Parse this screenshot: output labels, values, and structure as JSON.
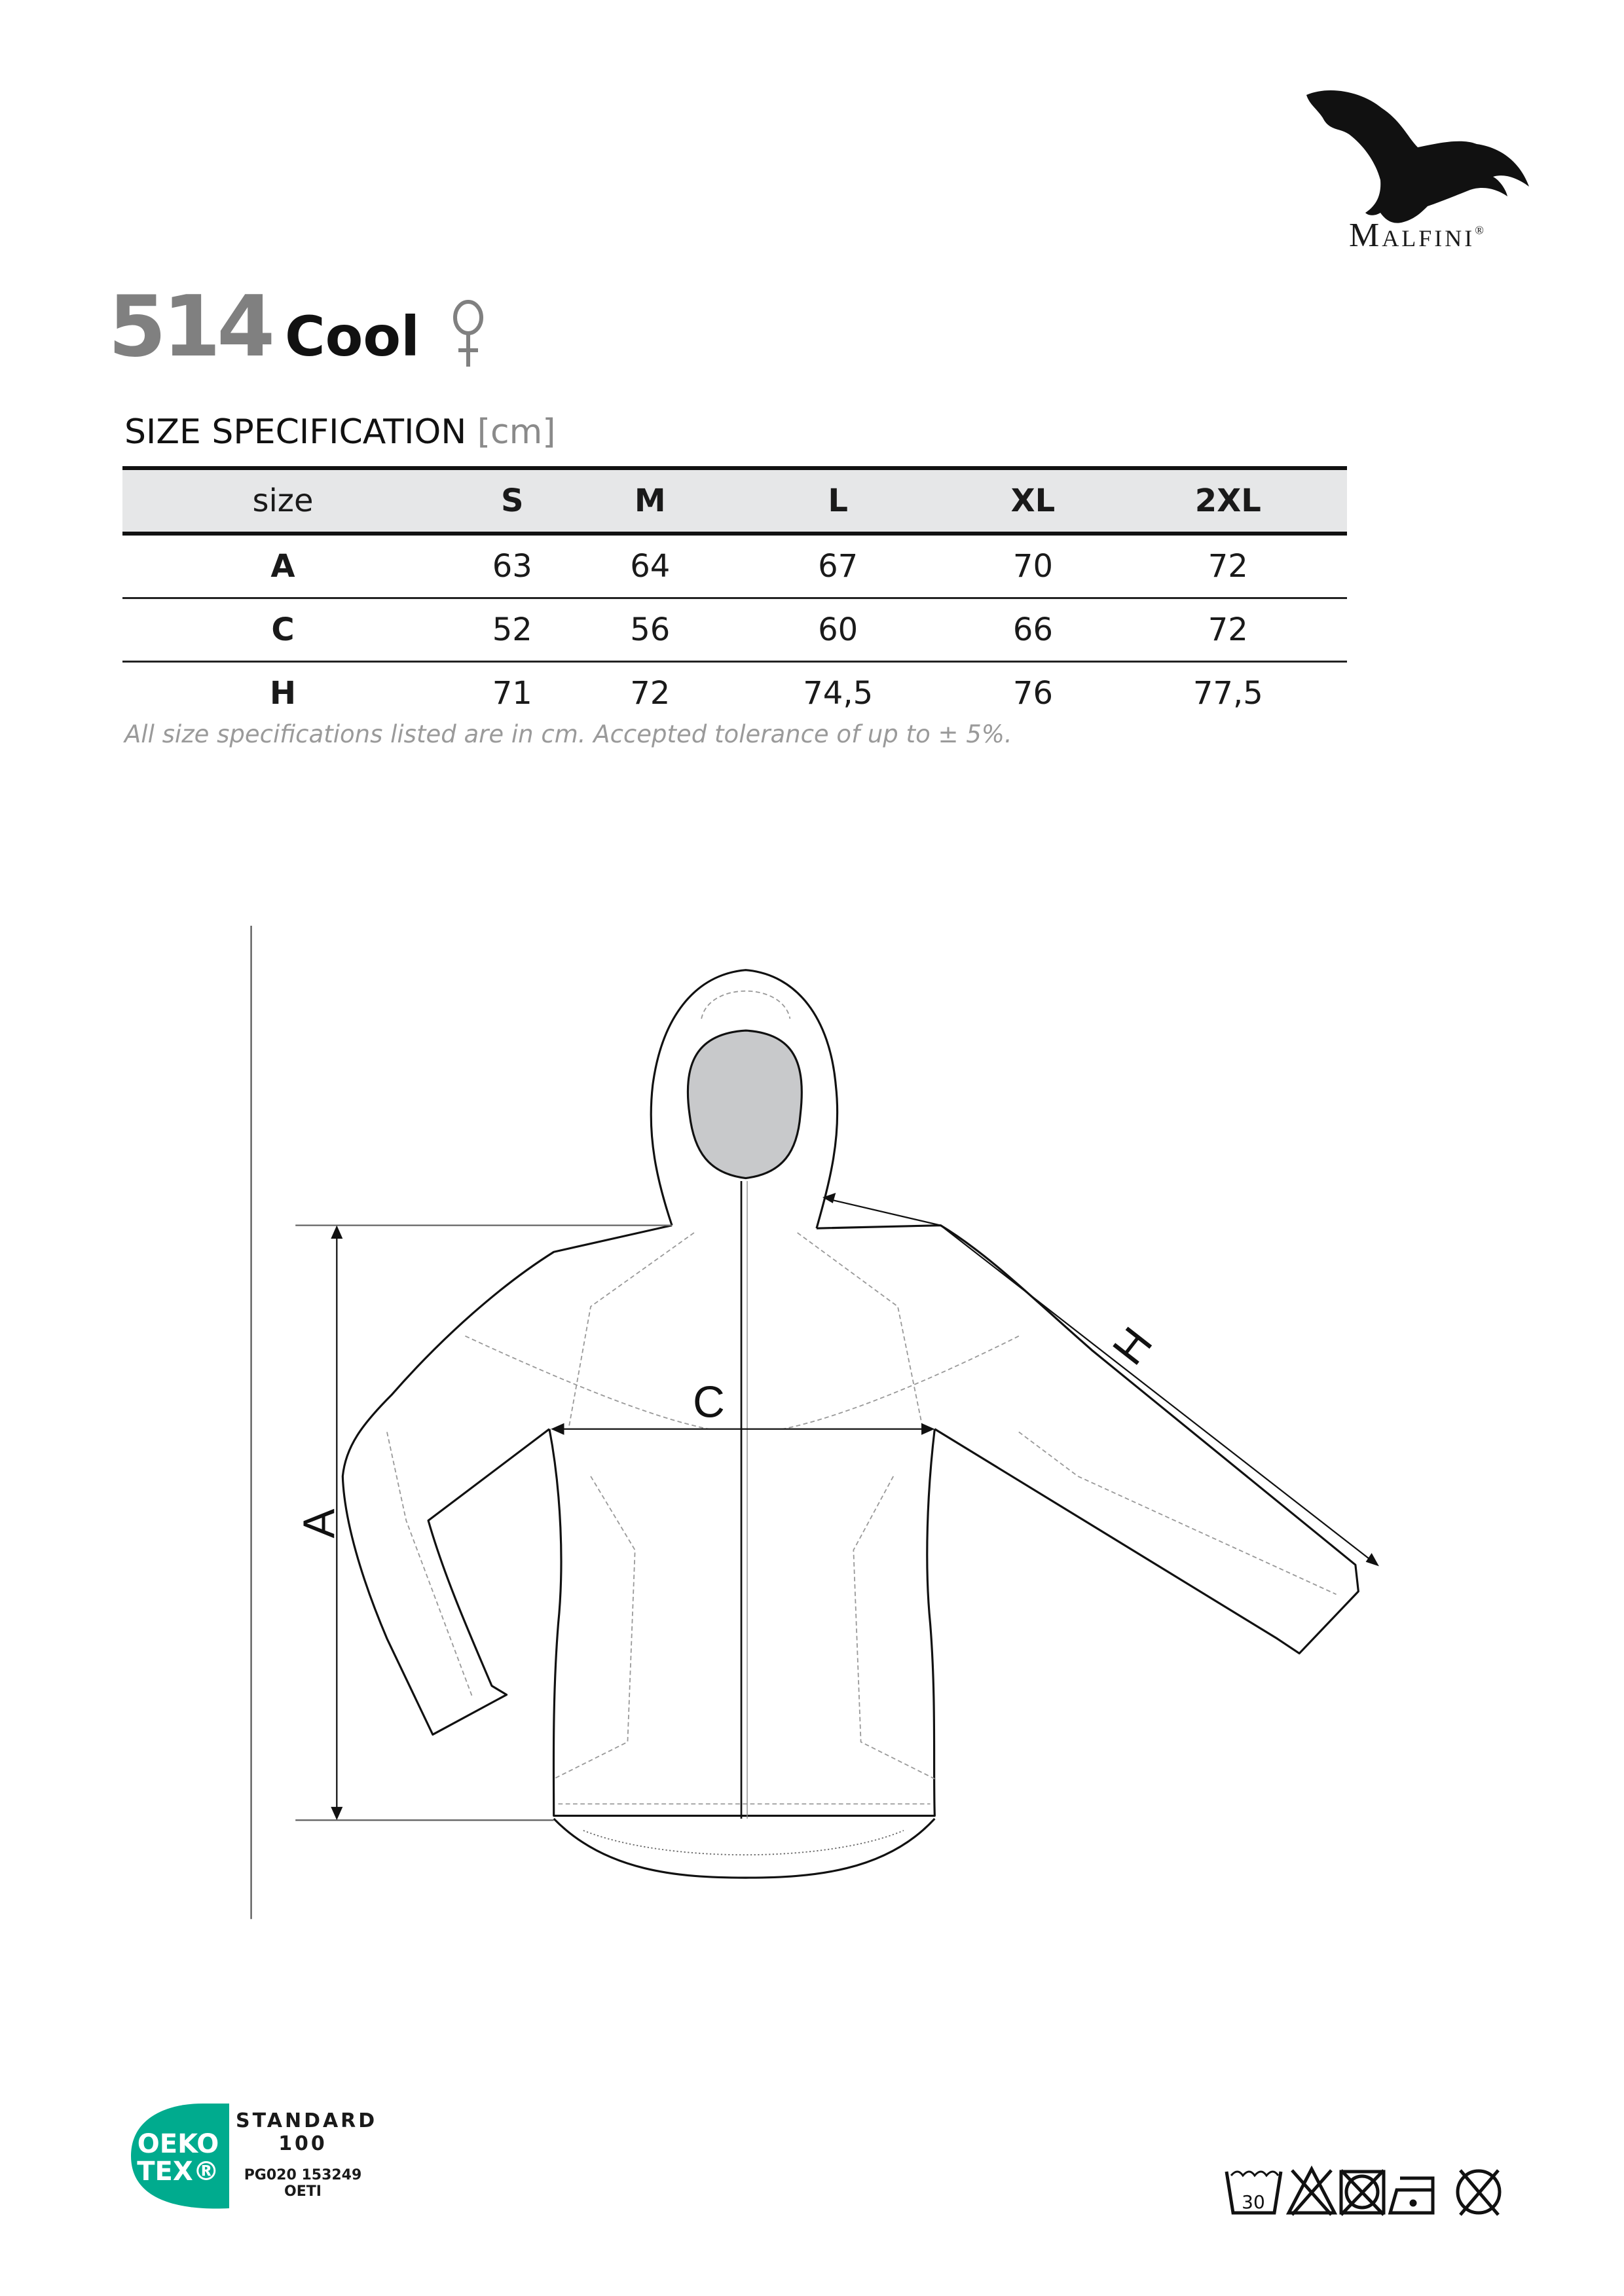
{
  "brand": {
    "name": "Malfini",
    "registered": "®"
  },
  "product": {
    "code": "514",
    "name": "Cool",
    "gender": "female"
  },
  "spec": {
    "title": "SIZE SPECIFICATION",
    "unit": "[cm]",
    "header": [
      "size",
      "S",
      "M",
      "L",
      "XL",
      "2XL"
    ],
    "rows": [
      [
        "A",
        "63",
        "64",
        "67",
        "70",
        "72"
      ],
      [
        "C",
        "52",
        "56",
        "60",
        "66",
        "72"
      ],
      [
        "H",
        "71",
        "72",
        "74,5",
        "76",
        "77,5"
      ]
    ],
    "footnote": "All size specifications listed are in cm. Accepted tolerance of up to ± 5%."
  },
  "drawing": {
    "labels": {
      "a": "A",
      "c": "C",
      "h": "H"
    }
  },
  "certification": {
    "logo_line1": "OEKO",
    "logo_line2": "TEX®",
    "standard": "STANDARD",
    "number": "100",
    "certificate": "PG020 153249",
    "institute": "OETI",
    "color": "#00ab8e"
  },
  "care": {
    "wash_temp": "30",
    "symbols": [
      "wash-30-icon",
      "no-bleach-icon",
      "no-tumble-dry-icon",
      "iron-low-icon",
      "no-dry-clean-icon"
    ]
  }
}
